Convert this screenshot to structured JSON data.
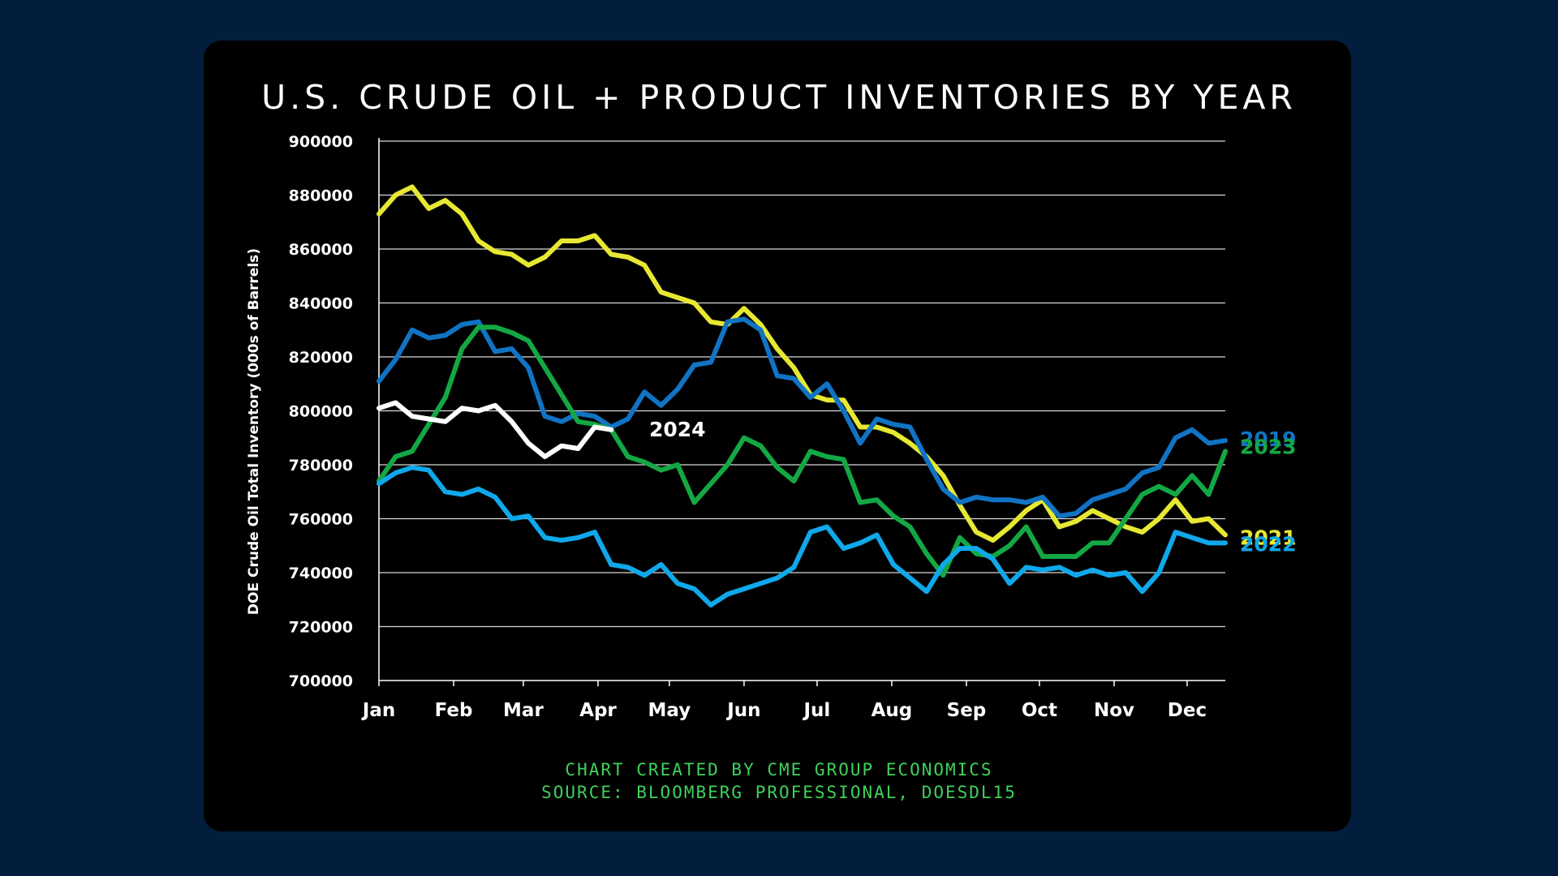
{
  "chart_data": {
    "type": "line",
    "title": "U.S. CRUDE OIL + PRODUCT INVENTORIES BY YEAR",
    "ylabel": "DOE Crude Oil Total Inventory (000s of Barrels)",
    "xlabel": "",
    "ylim": [
      700000,
      900000
    ],
    "yticks": [
      "900000",
      "880000",
      "860000",
      "840000",
      "820000",
      "800000",
      "780000",
      "760000",
      "740000",
      "720000",
      "700000"
    ],
    "xlim": [
      1,
      52
    ],
    "months": [
      {
        "label": "Jan",
        "week": 1
      },
      {
        "label": "Feb",
        "week": 5.5
      },
      {
        "label": "Mar",
        "week": 9.7
      },
      {
        "label": "Apr",
        "week": 14.2
      },
      {
        "label": "May",
        "week": 18.5
      },
      {
        "label": "Jun",
        "week": 23
      },
      {
        "label": "Jul",
        "week": 27.4
      },
      {
        "label": "Aug",
        "week": 31.9
      },
      {
        "label": "Sep",
        "week": 36.4
      },
      {
        "label": "Oct",
        "week": 40.8
      },
      {
        "label": "Nov",
        "week": 45.3
      },
      {
        "label": "Dec",
        "week": 49.7
      }
    ],
    "grid": true,
    "legend": "series labels at right end of lines",
    "series": [
      {
        "name": "2021",
        "color": "#e6e832",
        "label_offset": 3,
        "x_start": 1,
        "values": [
          873000,
          880000,
          883000,
          875000,
          878000,
          873000,
          863000,
          859000,
          858000,
          854000,
          857000,
          863000,
          863000,
          865000,
          858000,
          857000,
          854000,
          844000,
          842000,
          840000,
          833000,
          832000,
          838000,
          832000,
          823000,
          816000,
          806000,
          804000,
          804000,
          794000,
          794000,
          792000,
          788000,
          783000,
          776000,
          765000,
          755000,
          752000,
          757000,
          763000,
          767000,
          757000,
          759000,
          763000,
          760000,
          757000,
          755000,
          760000,
          767000,
          759000,
          760000,
          754000
        ]
      },
      {
        "name": "2019",
        "color": "#1173c4",
        "label_offset": -2,
        "x_start": 1,
        "values": [
          811000,
          819000,
          830000,
          827000,
          828000,
          832000,
          833000,
          822000,
          823000,
          816000,
          798000,
          796000,
          799000,
          798000,
          794000,
          797000,
          807000,
          802000,
          808000,
          817000,
          818000,
          833000,
          834000,
          830000,
          813000,
          812000,
          805000,
          810000,
          800000,
          788000,
          797000,
          795000,
          794000,
          782000,
          771000,
          766000,
          768000,
          767000,
          767000,
          766000,
          768000,
          761000,
          762000,
          767000,
          769000,
          771000,
          777000,
          779000,
          790000,
          793000,
          788000,
          789000
        ]
      },
      {
        "name": "2023",
        "color": "#13a844",
        "label_offset": -6,
        "x_start": 1,
        "values": [
          774000,
          783000,
          785000,
          795000,
          805000,
          823000,
          831000,
          831000,
          829000,
          826000,
          816000,
          806000,
          796000,
          795000,
          793000,
          783000,
          781000,
          778000,
          780000,
          766000,
          773000,
          780000,
          790000,
          787000,
          779000,
          774000,
          785000,
          783000,
          782000,
          766000,
          767000,
          761000,
          757000,
          747000,
          739000,
          753000,
          747000,
          746000,
          750000,
          757000,
          746000,
          746000,
          746000,
          751000,
          751000,
          760000,
          769000,
          772000,
          769000,
          776000,
          769000,
          785000
        ]
      },
      {
        "name": "2022",
        "color": "#0fa8ea",
        "label_offset": 1,
        "x_start": 1,
        "values": [
          773000,
          777000,
          779000,
          778000,
          770000,
          769000,
          771000,
          768000,
          760000,
          761000,
          753000,
          752000,
          753000,
          755000,
          743000,
          742000,
          739000,
          743000,
          736000,
          734000,
          728000,
          732000,
          734000,
          736000,
          738000,
          742000,
          755000,
          757000,
          749000,
          751000,
          754000,
          743000,
          738000,
          733000,
          743000,
          749000,
          749000,
          745000,
          736000,
          742000,
          741000,
          742000,
          739000,
          741000,
          739000,
          740000,
          733000,
          740000,
          755000,
          753000,
          751000,
          751000
        ]
      },
      {
        "name": "2024",
        "color": "#ffffff",
        "label_offset": 0,
        "x_start": 1,
        "values": [
          801000,
          803000,
          798000,
          797000,
          796000,
          801000,
          800000,
          802000,
          796000,
          788000,
          783000,
          787000,
          786000,
          794000,
          793000
        ]
      }
    ]
  },
  "credits": {
    "line1": "CHART CREATED BY CME GROUP ECONOMICS",
    "line2": "SOURCE: BLOOMBERG PROFESSIONAL, DOESDL15"
  }
}
